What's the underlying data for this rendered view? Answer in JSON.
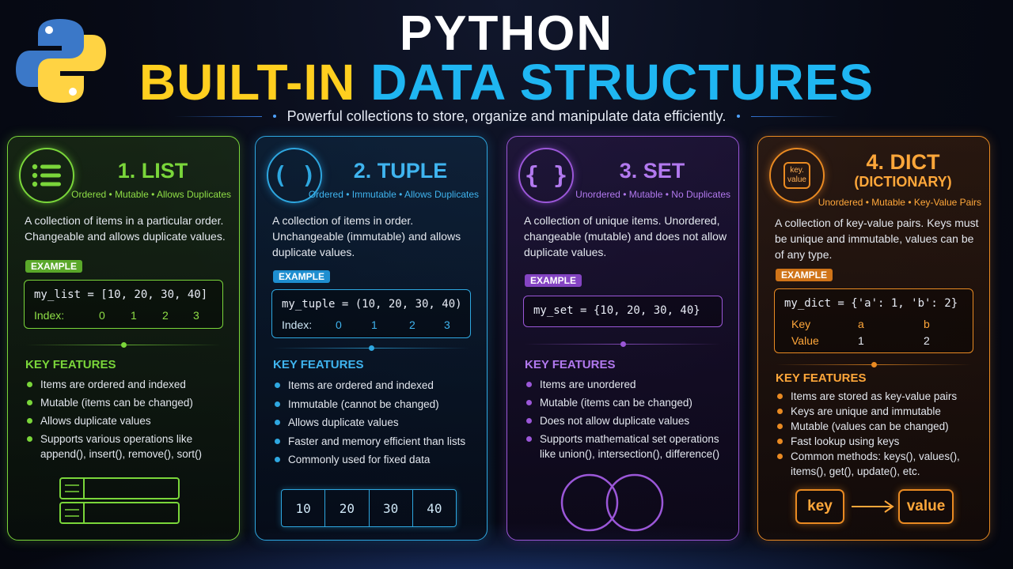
{
  "header": {
    "title_line1": "PYTHON",
    "title_line2_part1": "BUILT-IN",
    "title_line2_part2": "DATA STRUCTURES",
    "subtitle": "Powerful collections to store, organize and manipulate data efficiently."
  },
  "logo": {
    "icon": "python-logo-icon",
    "colors": [
      "#3b78c8",
      "#ffd343"
    ]
  },
  "cards": {
    "list": {
      "title": "1. LIST",
      "tags": "Ordered • Mutable • Allows Duplicates",
      "description": "A collection of items in a particular order. Changeable and allows duplicate values.",
      "example_label": "EXAMPLE",
      "code": "my_list = [10, 20, 30, 40]",
      "index_label": "Index:",
      "indices": [
        "0",
        "1",
        "2",
        "3"
      ],
      "features_title": "KEY FEATURES",
      "features": [
        "Items are ordered and indexed",
        "Mutable (items can be changed)",
        "Allows duplicate values",
        "Supports various operations like append(), insert(), remove(), sort()"
      ],
      "accent": "#7ad63a",
      "icon": "list-icon"
    },
    "tuple": {
      "title": "2. TUPLE",
      "tags": "Ordered • Immutable • Allows Duplicates",
      "description": "A collection of items in order. Unchangeable (immutable) and allows duplicate values.",
      "example_label": "EXAMPLE",
      "code": "my_tuple = (10, 20, 30, 40)",
      "index_label": "Index:",
      "indices": [
        "0",
        "1",
        "2",
        "3"
      ],
      "features_title": "KEY FEATURES",
      "features": [
        "Items are ordered and indexed",
        "Immutable (cannot be changed)",
        "Allows duplicate values",
        "Faster and memory efficient than lists",
        "Commonly used for fixed data"
      ],
      "cells": [
        "10",
        "20",
        "30",
        "40"
      ],
      "icon_glyph": "( )",
      "accent": "#2ea7e0",
      "icon": "parentheses-icon"
    },
    "set": {
      "title": "3. SET",
      "tags": "Unordered • Mutable • No Duplicates",
      "description": "A collection of unique items. Unordered, changeable (mutable) and does not allow duplicate values.",
      "example_label": "EXAMPLE",
      "code": "my_set = {10, 20, 30, 40}",
      "features_title": "KEY FEATURES",
      "features": [
        "Items are unordered",
        "Mutable (items can be changed)",
        "Does not allow duplicate values",
        "Supports mathematical set operations like union(), intersection(), difference()"
      ],
      "icon_glyph": "{ }",
      "accent": "#9b57d8",
      "icon": "curly-braces-icon"
    },
    "dict": {
      "title": "4. DICT",
      "title_sub": "(DICTIONARY)",
      "tags": "Unordered • Mutable • Key-Value Pairs",
      "description": "A collection of key-value pairs. Keys must be unique and immutable, values can be of any type.",
      "example_label": "EXAMPLE",
      "code": "my_dict = {'a': 1, 'b': 2}",
      "table_key_label": "Key",
      "table_value_label": "Value",
      "keys": [
        "a",
        "b"
      ],
      "values": [
        "1",
        "2"
      ],
      "features_title": "KEY FEATURES",
      "features": [
        "Items are stored as key-value pairs",
        "Keys are unique and immutable",
        "Mutable (values can be changed)",
        "Fast lookup using keys",
        "Common methods: keys(), values(), items(), get(), update(), etc."
      ],
      "icon_text_top": "key.",
      "icon_text_bottom": "value",
      "pill_key": "key",
      "pill_value": "value",
      "accent": "#e98a22",
      "icon": "key-value-icon"
    }
  }
}
